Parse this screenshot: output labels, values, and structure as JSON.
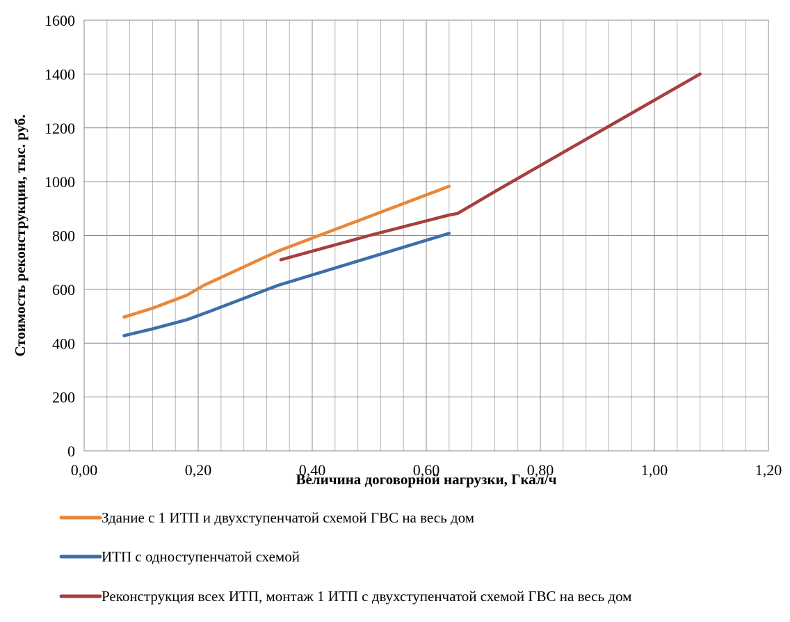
{
  "chart_data": {
    "type": "line",
    "title": "",
    "xlabel": "Величина договорной нагрузки, Гкал/ч",
    "ylabel": "Стоимость реконструкции, тыс. руб.",
    "xlim": [
      0,
      1.2
    ],
    "ylim": [
      0,
      1600
    ],
    "x_major_ticks": [
      0,
      0.2,
      0.4,
      0.6,
      0.8,
      1.0,
      1.2
    ],
    "x_tick_labels": [
      "0,00",
      "0,20",
      "0,40",
      "0,60",
      "0,80",
      "1,00",
      "1,20"
    ],
    "x_minor_step": 0.04,
    "y_ticks": [
      0,
      200,
      400,
      600,
      800,
      1000,
      1200,
      1400,
      1600
    ],
    "y_tick_labels": [
      "0",
      "200",
      "400",
      "600",
      "800",
      "1000",
      "1200",
      "1400",
      "1600"
    ],
    "grid": true,
    "legend_position": "bottom",
    "series": [
      {
        "name": "Здание с 1 ИТП и двухступенчатой схемой ГВС на весь дом",
        "color": "#E8883A",
        "points": [
          [
            0.07,
            497
          ],
          [
            0.12,
            530
          ],
          [
            0.18,
            578
          ],
          [
            0.21,
            615
          ],
          [
            0.34,
            742
          ],
          [
            0.64,
            983
          ]
        ]
      },
      {
        "name": "ИТП с одноступенчатой схемой",
        "color": "#3E6EA8",
        "points": [
          [
            0.07,
            428
          ],
          [
            0.12,
            453
          ],
          [
            0.18,
            487
          ],
          [
            0.22,
            518
          ],
          [
            0.34,
            615
          ],
          [
            0.64,
            808
          ]
        ]
      },
      {
        "name": "Реконструкция всех ИТП, монтаж 1 ИТП с двухступенчатой схемой ГВС на весь дом",
        "color": "#A83E3E",
        "points": [
          [
            0.345,
            710
          ],
          [
            0.5,
            800
          ],
          [
            0.64,
            876
          ],
          [
            0.655,
            882
          ],
          [
            0.72,
            963
          ],
          [
            1.08,
            1400
          ]
        ]
      }
    ]
  }
}
